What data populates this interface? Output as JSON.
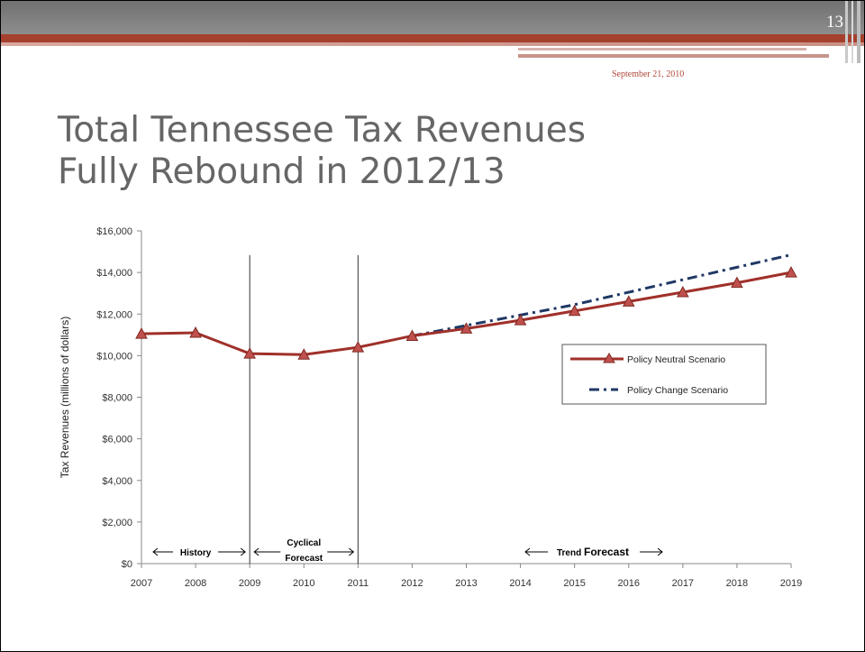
{
  "header": {
    "page_number": "13",
    "date": "September 21, 2010"
  },
  "title": {
    "line1": "Total Tennessee Tax Revenues",
    "line2": "Fully Rebound in 2012/13"
  },
  "colors": {
    "neutral": "#a0302a",
    "change": "#1f3864",
    "accent_red": "#a5402e"
  },
  "chart_data": {
    "type": "line",
    "x": [
      "2007",
      "2008",
      "2009",
      "2010",
      "2011",
      "2012",
      "2013",
      "2014",
      "2015",
      "2016",
      "2017",
      "2018",
      "2019"
    ],
    "ylabel": "Tax Revenues (millions of dollars)",
    "ylim": [
      0,
      16000
    ],
    "yticks": [
      0,
      2000,
      4000,
      6000,
      8000,
      10000,
      12000,
      14000,
      16000
    ],
    "ytick_labels": [
      "$0",
      "$2,000",
      "$4,000",
      "$6,000",
      "$8,000",
      "$10,000",
      "$12,000",
      "$14,000",
      "$16,000"
    ],
    "grid": false,
    "legend_position": "right",
    "series": [
      {
        "name": "Policy Neutral Scenario",
        "style": "solid-triangle",
        "values": [
          11050,
          11100,
          10100,
          10050,
          10400,
          10950,
          11300,
          11700,
          12150,
          12600,
          13050,
          13500,
          14000
        ]
      },
      {
        "name": "Policy Change Scenario",
        "style": "dash-dot",
        "values": [
          null,
          null,
          null,
          null,
          null,
          10950,
          11450,
          11950,
          12450,
          13050,
          13650,
          14250,
          14850
        ]
      }
    ],
    "regions": [
      {
        "label": "History",
        "from": "2007",
        "to": "2009"
      },
      {
        "label_line1": "Cyclical",
        "label_line2": "Forecast",
        "from": "2009",
        "to": "2011"
      },
      {
        "label_prefix": "Trend ",
        "label_main": "Forecast",
        "from": "2011",
        "to": "2019"
      }
    ],
    "dividers": [
      "2009",
      "2011"
    ]
  }
}
